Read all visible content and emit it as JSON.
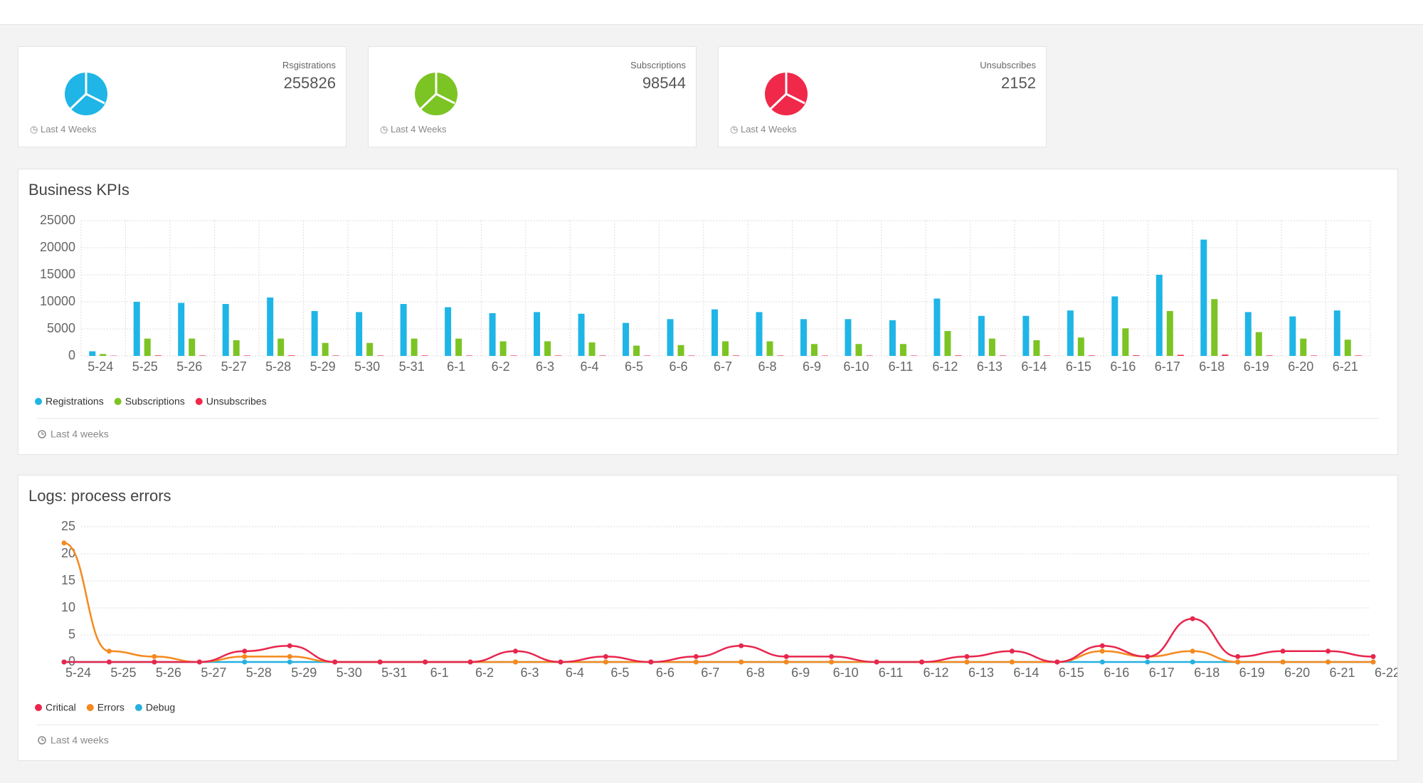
{
  "cards": [
    {
      "title": "Rsgistrations",
      "value": 255826,
      "footer": "Last 4 Weeks",
      "color": "#1fb5e6"
    },
    {
      "title": "Subscriptions",
      "value": 98544,
      "footer": "Last 4 Weeks",
      "color": "#7cc423"
    },
    {
      "title": "Unsubscribes",
      "value": 2152,
      "footer": "Last 4 Weeks",
      "color": "#f0284a"
    }
  ],
  "chart_data": [
    {
      "type": "bar",
      "title": "Business KPIs",
      "footer": "Last 4 weeks",
      "grid": true,
      "categories": [
        "5-24",
        "5-25",
        "5-26",
        "5-27",
        "5-28",
        "5-29",
        "5-30",
        "5-31",
        "6-1",
        "6-2",
        "6-3",
        "6-4",
        "6-5",
        "6-6",
        "6-7",
        "6-8",
        "6-9",
        "6-10",
        "6-11",
        "6-12",
        "6-13",
        "6-14",
        "6-15",
        "6-16",
        "6-17",
        "6-18",
        "6-19",
        "6-20",
        "6-21"
      ],
      "series": [
        {
          "name": "Registrations",
          "color": "#1fb5e6",
          "values": [
            850,
            10000,
            9800,
            9600,
            10800,
            8300,
            8100,
            9600,
            9000,
            7900,
            8100,
            7800,
            6100,
            6800,
            8600,
            8100,
            6800,
            6800,
            6600,
            10600,
            7400,
            7400,
            8400,
            11000,
            15000,
            21500,
            8100,
            7300,
            8400
          ]
        },
        {
          "name": "Subscriptions",
          "color": "#7cc423",
          "values": [
            350,
            3200,
            3200,
            2900,
            3200,
            2400,
            2400,
            3200,
            3200,
            2700,
            2700,
            2500,
            1900,
            2000,
            2700,
            2700,
            2200,
            2200,
            2200,
            4600,
            3200,
            2900,
            3400,
            5100,
            8300,
            10500,
            4400,
            3200,
            3000
          ]
        },
        {
          "name": "Unsubscribes",
          "color": "#f0284a",
          "values": [
            50,
            100,
            80,
            80,
            100,
            80,
            80,
            90,
            80,
            80,
            80,
            80,
            70,
            70,
            90,
            80,
            70,
            70,
            70,
            100,
            80,
            80,
            90,
            120,
            200,
            250,
            90,
            80,
            90
          ]
        }
      ],
      "ylim": [
        0,
        25000
      ],
      "yticks": [
        0,
        5000,
        10000,
        15000,
        20000,
        25000
      ]
    },
    {
      "type": "line",
      "title": "Logs: process errors",
      "footer": "Last 4 weeks",
      "grid": true,
      "categories": [
        "5-24",
        "5-25",
        "5-26",
        "5-27",
        "5-28",
        "5-29",
        "5-30",
        "5-31",
        "6-1",
        "6-2",
        "6-3",
        "6-4",
        "6-5",
        "6-6",
        "6-7",
        "6-8",
        "6-9",
        "6-10",
        "6-11",
        "6-12",
        "6-13",
        "6-14",
        "6-15",
        "6-16",
        "6-17",
        "6-18",
        "6-19",
        "6-20",
        "6-21",
        "6-22"
      ],
      "series": [
        {
          "name": "Critical",
          "color": "#e8264d",
          "values": [
            0,
            0,
            0,
            0,
            2,
            3,
            0,
            0,
            0,
            0,
            2,
            0,
            1,
            0,
            1,
            3,
            1,
            1,
            0,
            0,
            1,
            2,
            0,
            3,
            1,
            8,
            1,
            2,
            2,
            1
          ]
        },
        {
          "name": "Errors",
          "color": "#f5891e",
          "values": [
            22,
            2,
            1,
            0,
            1,
            1,
            0,
            0,
            0,
            0,
            0,
            0,
            0,
            0,
            0,
            0,
            0,
            0,
            0,
            0,
            0,
            0,
            0,
            2,
            1,
            2,
            0,
            0,
            0,
            0
          ]
        },
        {
          "name": "Debug",
          "color": "#27b0e0",
          "values": [
            0,
            0,
            0,
            0,
            0,
            0,
            0,
            0,
            0,
            0,
            0,
            0,
            0,
            0,
            0,
            0,
            0,
            0,
            0,
            0,
            0,
            0,
            0,
            0,
            0,
            0,
            0,
            0,
            0,
            0
          ]
        }
      ],
      "ylim": [
        0,
        25
      ],
      "yticks": [
        0,
        5,
        10,
        15,
        20,
        25
      ]
    }
  ]
}
